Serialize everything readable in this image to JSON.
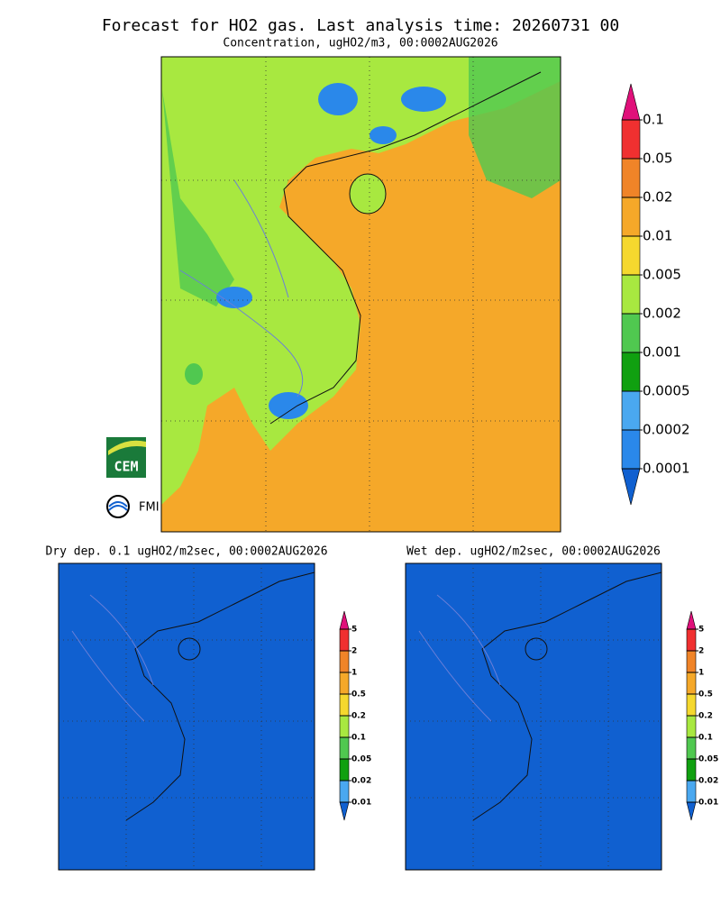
{
  "header": {
    "title": "Forecast for HO2 gas. Last analysis time: 20260731 00",
    "subtitle": "Concentration, ugHO2/m3, 00:0002AUG2026"
  },
  "colorbar_colors": [
    "#e0107a",
    "#f03030",
    "#f08428",
    "#f5a829",
    "#f5d82e",
    "#a8e840",
    "#50c850",
    "#10a010",
    "#4aa8f0",
    "#2a88ea",
    "#1060d0"
  ],
  "panels": [
    {
      "title": "",
      "levels": [
        0.1,
        0.05,
        0.02,
        0.01,
        0.005,
        0.002,
        0.001,
        0.0005,
        0.0002,
        0.0001
      ]
    },
    {
      "title": "Dry dep. 0.1 ugHO2/m2sec, 00:0002AUG2026",
      "levels": [
        5,
        2,
        1,
        0.5,
        0.2,
        0.1,
        0.05,
        0.02,
        0.01
      ]
    },
    {
      "title": "Wet dep. ugHO2/m2sec, 00:0002AUG2026",
      "levels": [
        5,
        2,
        1,
        0.5,
        0.2,
        0.1,
        0.05,
        0.02,
        0.01
      ]
    }
  ],
  "logos": [
    "CEM",
    "FMI"
  ]
}
